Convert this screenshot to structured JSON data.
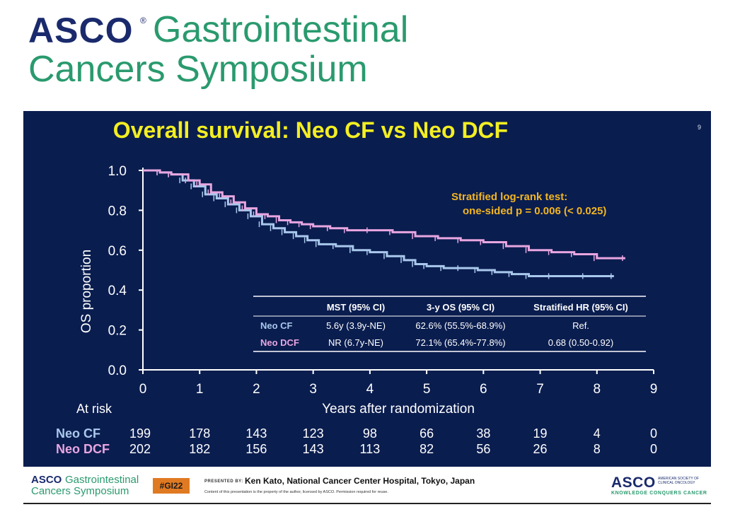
{
  "header": {
    "asco": "ASCO",
    "reg": "®",
    "line1": "Gastrointestinal",
    "line2": "Cancers Symposium"
  },
  "slide": {
    "title": "Overall survival: Neo CF vs Neo DCF",
    "number": "9",
    "log_rank_line1": "Stratified log-rank test:",
    "log_rank_line2": "one-sided p = 0.006 (< 0.025)",
    "colors": {
      "background": "#0a1d4f",
      "title": "#f3ee22",
      "cf": "#a9c8ec",
      "dcf": "#e8a6e0",
      "annotation": "#f2b522"
    }
  },
  "chart_data": {
    "type": "line",
    "xlabel": "Years after randomization",
    "ylabel": "OS proportion",
    "xlim": [
      0,
      9
    ],
    "ylim": [
      0,
      1
    ],
    "x_ticks": [
      "0",
      "1",
      "2",
      "3",
      "4",
      "5",
      "6",
      "7",
      "8",
      "9"
    ],
    "y_ticks": [
      "0.0",
      "0.2",
      "0.4",
      "0.6",
      "0.8",
      "1.0"
    ],
    "series": [
      {
        "name": "Neo CF",
        "color": "#a9c8ec",
        "points": [
          [
            0,
            1.0
          ],
          [
            0.3,
            0.99
          ],
          [
            0.5,
            0.98
          ],
          [
            0.7,
            0.95
          ],
          [
            0.9,
            0.92
          ],
          [
            1.1,
            0.88
          ],
          [
            1.3,
            0.86
          ],
          [
            1.5,
            0.83
          ],
          [
            1.7,
            0.8
          ],
          [
            1.9,
            0.77
          ],
          [
            2.1,
            0.73
          ],
          [
            2.3,
            0.71
          ],
          [
            2.5,
            0.69
          ],
          [
            2.7,
            0.67
          ],
          [
            2.9,
            0.65
          ],
          [
            3.1,
            0.63
          ],
          [
            3.4,
            0.62
          ],
          [
            3.7,
            0.6
          ],
          [
            4.0,
            0.59
          ],
          [
            4.3,
            0.57
          ],
          [
            4.6,
            0.55
          ],
          [
            4.8,
            0.53
          ],
          [
            5.0,
            0.52
          ],
          [
            5.3,
            0.51
          ],
          [
            5.6,
            0.51
          ],
          [
            5.9,
            0.5
          ],
          [
            6.2,
            0.49
          ],
          [
            6.5,
            0.48
          ],
          [
            6.8,
            0.47
          ],
          [
            7.2,
            0.47
          ],
          [
            7.8,
            0.47
          ],
          [
            8.3,
            0.47
          ]
        ]
      },
      {
        "name": "Neo DCF",
        "color": "#e8a6e0",
        "points": [
          [
            0,
            1.0
          ],
          [
            0.3,
            0.99
          ],
          [
            0.5,
            0.98
          ],
          [
            0.8,
            0.95
          ],
          [
            1.0,
            0.93
          ],
          [
            1.2,
            0.89
          ],
          [
            1.4,
            0.87
          ],
          [
            1.6,
            0.84
          ],
          [
            1.8,
            0.81
          ],
          [
            2.0,
            0.78
          ],
          [
            2.2,
            0.77
          ],
          [
            2.4,
            0.75
          ],
          [
            2.6,
            0.74
          ],
          [
            2.8,
            0.73
          ],
          [
            3.0,
            0.72
          ],
          [
            3.3,
            0.71
          ],
          [
            3.6,
            0.7
          ],
          [
            4.0,
            0.7
          ],
          [
            4.4,
            0.69
          ],
          [
            4.8,
            0.67
          ],
          [
            5.2,
            0.66
          ],
          [
            5.6,
            0.65
          ],
          [
            6.0,
            0.64
          ],
          [
            6.4,
            0.62
          ],
          [
            6.8,
            0.6
          ],
          [
            7.2,
            0.59
          ],
          [
            7.6,
            0.58
          ],
          [
            8.0,
            0.56
          ],
          [
            8.5,
            0.56
          ]
        ]
      }
    ]
  },
  "summary_table": {
    "headers": [
      "",
      "MST (95% CI)",
      "3-y OS (95% CI)",
      "Stratified HR (95% CI)"
    ],
    "rows": [
      [
        "Neo CF",
        "5.6y (3.9y-NE)",
        "62.6% (55.5%-68.9%)",
        "Ref."
      ],
      [
        "Neo DCF",
        "NR (6.7y-NE)",
        "72.1% (65.4%-77.8%)",
        "0.68 (0.50-0.92)"
      ]
    ]
  },
  "at_risk": {
    "label": "At risk",
    "rows": [
      {
        "name": "Neo CF",
        "values": [
          "199",
          "178",
          "143",
          "123",
          "98",
          "66",
          "38",
          "19",
          "4",
          "0"
        ]
      },
      {
        "name": "Neo DCF",
        "values": [
          "202",
          "182",
          "156",
          "143",
          "113",
          "82",
          "56",
          "26",
          "8",
          "0"
        ]
      }
    ]
  },
  "footer": {
    "asco": "ASCO",
    "line1": "Gastrointestinal",
    "line2": "Cancers Symposium",
    "hashtag": "#GI22",
    "presented_by": "PRESENTED BY:",
    "presenter": "Ken Kato, National Cancer Center Hospital, Tokyo, Japan",
    "notice": "Content of this presentation is the property of the author, licensed by ASCO. Permission required for reuse.",
    "asco_right": "ASCO",
    "society": "AMERICAN SOCIETY OF CLINICAL ONCOLOGY",
    "tagline": "KNOWLEDGE CONQUERS CANCER"
  }
}
